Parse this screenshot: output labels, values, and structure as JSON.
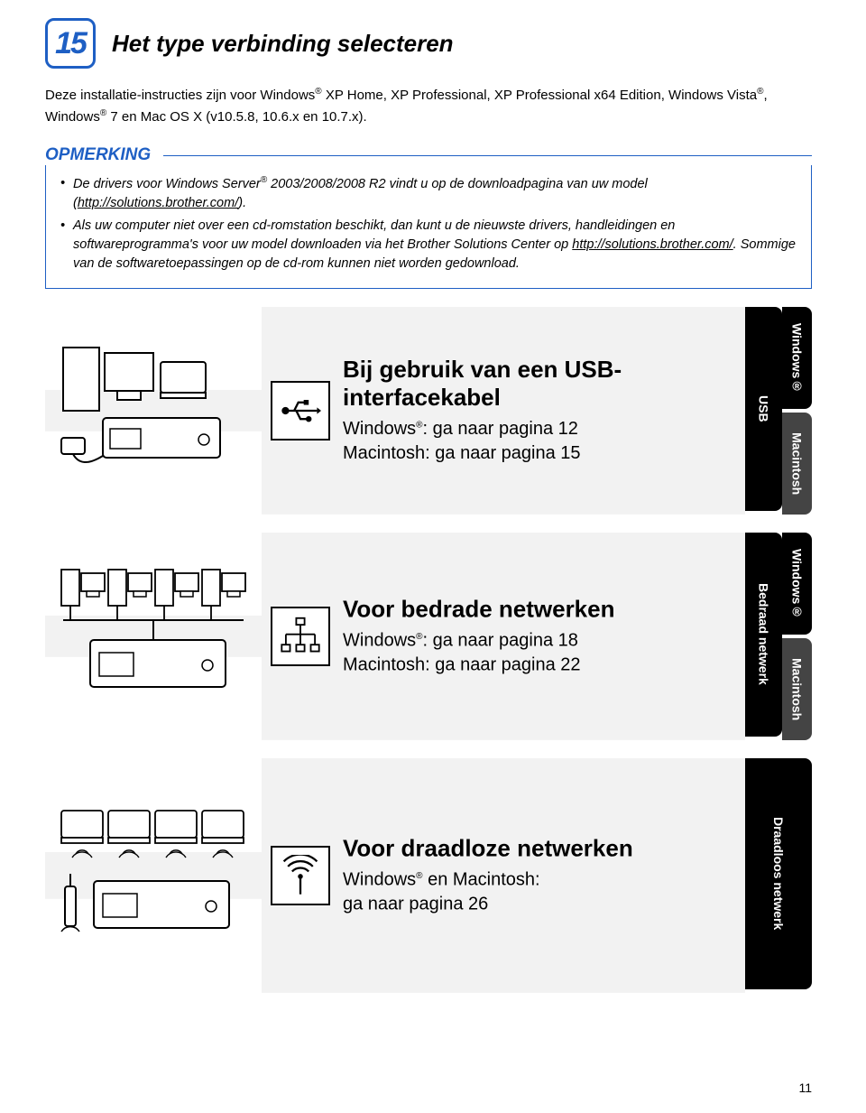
{
  "step": {
    "number": "15",
    "title": "Het type verbinding selecteren"
  },
  "intro_html": "Deze installatie-instructies zijn voor Windows<sup>®</sup> XP Home, XP Professional, XP Professional x64 Edition, Windows Vista<sup>®</sup>, Windows<sup>®</sup> 7 en Mac OS X (v10.5.8, 10.6.x en 10.7.x).",
  "note": {
    "label": "OPMERKING",
    "bullets": [
      "De drivers voor Windows Server<sup>®</sup> 2003/2008/2008 R2 vindt u op de downloadpagina van uw model (<span class='link'>http://solutions.brother.com/</span>).",
      "Als uw computer niet over een cd-romstation beschikt, dan kunt u de nieuwste drivers, handleidingen en softwareprogramma's voor uw model downloaden via het Brother Solutions Center op <span class='link'>http://solutions.brother.com/</span>. Sommige van de softwaretoepassingen op de cd-rom kunnen niet worden gedownload."
    ]
  },
  "options": [
    {
      "id": "usb",
      "title": "Bij gebruik van een USB-interfacekabel",
      "lines": [
        "Windows<sup>®</sup>: ga naar pagina 12",
        "Macintosh: ga naar pagina 15"
      ]
    },
    {
      "id": "wired",
      "title": "Voor bedrade netwerken",
      "lines": [
        "Windows<sup>®</sup>: ga naar pagina 18",
        "Macintosh: ga naar pagina 22"
      ]
    },
    {
      "id": "wireless",
      "title": "Voor draadloze netwerken",
      "lines": [
        "Windows<sup>®</sup> en Macintosh:",
        "ga naar pagina 26"
      ]
    }
  ],
  "tabs": {
    "group1": {
      "left": "USB",
      "topRight": "Windows®",
      "bottomRight": "Macintosh"
    },
    "group2": {
      "left": "Bedraad netwerk",
      "topRight": "Windows®",
      "bottomRight": "Macintosh"
    },
    "group3": {
      "full": "Draadloos netwerk"
    }
  },
  "pageNumber": "11",
  "colors": {
    "brandBlue": "#1e5fc4",
    "arrowGray": "#f2f2f2",
    "tabDark": "#000000",
    "tabMid": "#444444"
  }
}
